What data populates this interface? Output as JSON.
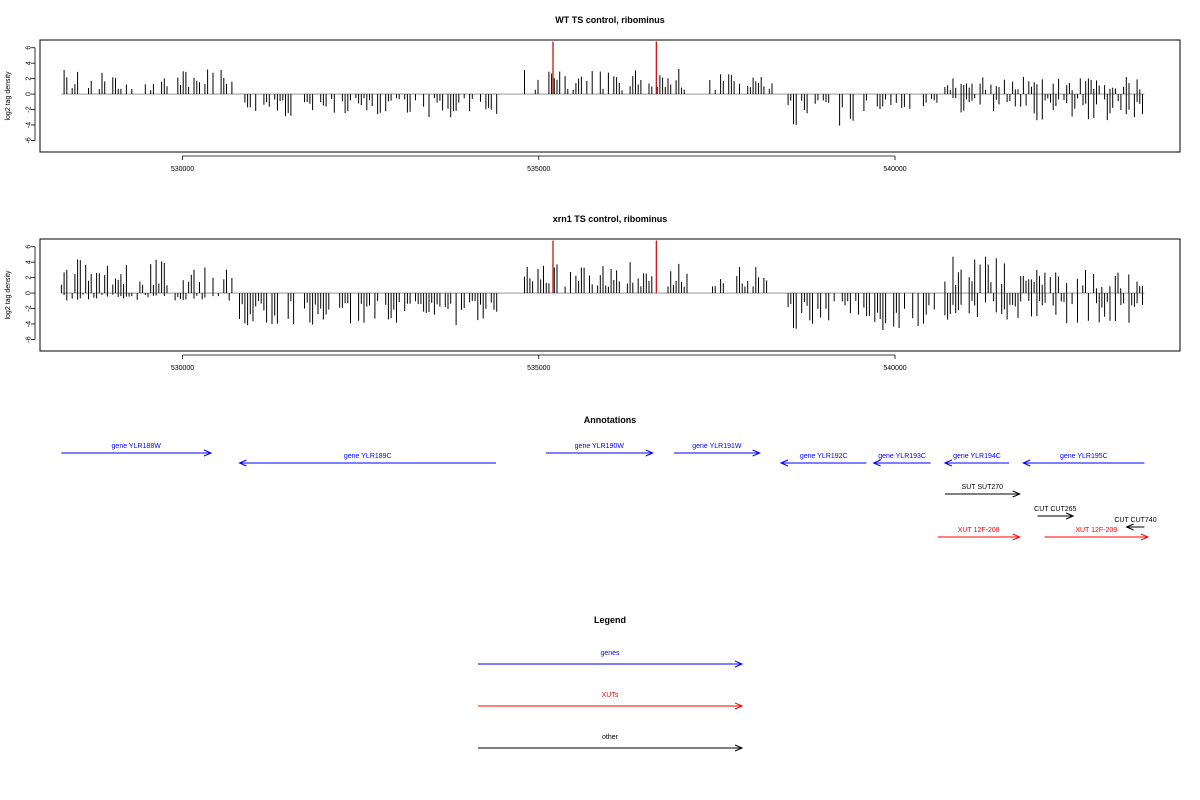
{
  "colors": {
    "gene": "#0000ff",
    "xut": "#ff0000",
    "other": "#000000",
    "bar": "#000000",
    "highlight": "#cc0000",
    "baseline": "#888888",
    "frame": "#000000"
  },
  "chart_data": [
    {
      "type": "bar",
      "title": "WT TS control, ribominus",
      "ylabel": "log2 tag density",
      "xlabel": "",
      "xlim": [
        528000,
        544000
      ],
      "ylim": [
        -7.5,
        7
      ],
      "yticks": [
        -6,
        -4,
        -2,
        0,
        2,
        4,
        6
      ],
      "xticks": [
        530000,
        535000,
        540000
      ],
      "xtick_labels": [
        "530000",
        "535000",
        "540000"
      ],
      "grid": false,
      "regions": [
        {
          "start": 528300,
          "end": 530700,
          "sign": 1,
          "min": 0.5,
          "max": 3.2
        },
        {
          "start": 530800,
          "end": 534500,
          "sign": -1,
          "min": 0.5,
          "max": 3.0
        },
        {
          "start": 534800,
          "end": 537100,
          "sign": 1,
          "min": 0.5,
          "max": 3.4
        },
        {
          "start": 537400,
          "end": 538300,
          "sign": 1,
          "min": 0.5,
          "max": 3.0
        },
        {
          "start": 538500,
          "end": 539600,
          "sign": -1,
          "min": 0.8,
          "max": 4.2
        },
        {
          "start": 539600,
          "end": 540600,
          "sign": -1,
          "min": 0.4,
          "max": 2.0
        },
        {
          "start": 540700,
          "end": 543500,
          "sign": -1,
          "min": 0.5,
          "max": 3.4
        },
        {
          "start": 540700,
          "end": 543500,
          "sign": 1,
          "min": 0.5,
          "max": 2.2
        }
      ],
      "highlights": [
        {
          "x": 535200,
          "y": 6.8
        },
        {
          "x": 536650,
          "y": 6.8
        }
      ]
    },
    {
      "type": "bar",
      "title": "xrn1 TS control, ribominus",
      "ylabel": "log2 tag density",
      "xlabel": "",
      "xlim": [
        528000,
        544000
      ],
      "ylim": [
        -7.5,
        7
      ],
      "yticks": [
        -6,
        -4,
        -2,
        0,
        2,
        4,
        6
      ],
      "xticks": [
        530000,
        535000,
        540000
      ],
      "xtick_labels": [
        "530000",
        "535000",
        "540000"
      ],
      "grid": false,
      "regions": [
        {
          "start": 528300,
          "end": 530700,
          "sign": 1,
          "min": 1.0,
          "max": 4.5
        },
        {
          "start": 528300,
          "end": 530700,
          "sign": -1,
          "min": 0.2,
          "max": 1.0
        },
        {
          "start": 530800,
          "end": 534500,
          "sign": -1,
          "min": 1.0,
          "max": 4.2
        },
        {
          "start": 534800,
          "end": 537100,
          "sign": 1,
          "min": 0.8,
          "max": 4.0
        },
        {
          "start": 537400,
          "end": 538300,
          "sign": 1,
          "min": 0.8,
          "max": 3.5
        },
        {
          "start": 538500,
          "end": 540600,
          "sign": -1,
          "min": 1.0,
          "max": 5.0
        },
        {
          "start": 540700,
          "end": 541800,
          "sign": 1,
          "min": 1.0,
          "max": 4.8
        },
        {
          "start": 540700,
          "end": 543500,
          "sign": -1,
          "min": 1.0,
          "max": 4.0
        },
        {
          "start": 541800,
          "end": 543500,
          "sign": 1,
          "min": 0.6,
          "max": 3.0
        }
      ],
      "highlights": [
        {
          "x": 535200,
          "y": 6.8
        },
        {
          "x": 536650,
          "y": 6.8
        }
      ]
    }
  ],
  "annotations": {
    "title": "Annotations",
    "features": [
      {
        "label": "gene YLR188W",
        "start": 528300,
        "end": 530400,
        "strand": "+",
        "kind": "gene",
        "row": 0
      },
      {
        "label": "gene YLR189C",
        "start": 530800,
        "end": 534400,
        "strand": "-",
        "kind": "gene",
        "row": 1
      },
      {
        "label": "gene YLR190W",
        "start": 535100,
        "end": 536600,
        "strand": "+",
        "kind": "gene",
        "row": 0
      },
      {
        "label": "gene YLR191W",
        "start": 536900,
        "end": 538100,
        "strand": "+",
        "kind": "gene",
        "row": 0
      },
      {
        "label": "gene YLR192C",
        "start": 538400,
        "end": 539600,
        "strand": "-",
        "kind": "gene",
        "row": 1
      },
      {
        "label": "gene YLR193C",
        "start": 539700,
        "end": 540500,
        "strand": "-",
        "kind": "gene",
        "row": 1
      },
      {
        "label": "gene YLR194C",
        "start": 540700,
        "end": 541600,
        "strand": "-",
        "kind": "gene",
        "row": 1
      },
      {
        "label": "gene YLR195C",
        "start": 541800,
        "end": 543500,
        "strand": "-",
        "kind": "gene",
        "row": 1
      },
      {
        "label": "SUT SUT270",
        "start": 540700,
        "end": 541750,
        "strand": "+",
        "kind": "other",
        "row": 2
      },
      {
        "label": "CUT CUT265",
        "start": 542000,
        "end": 542500,
        "strand": "+",
        "kind": "other",
        "row": 3
      },
      {
        "label": "CUT CUT740",
        "start": 543250,
        "end": 543500,
        "strand": "-",
        "kind": "other",
        "row": 4
      },
      {
        "label": "XUT 12F-208",
        "start": 540600,
        "end": 541750,
        "strand": "+",
        "kind": "xut",
        "row": 5
      },
      {
        "label": "XUT 12F-209",
        "start": 542100,
        "end": 543550,
        "strand": "+",
        "kind": "xut",
        "row": 5
      }
    ]
  },
  "legend": {
    "title": "Legend",
    "items": [
      {
        "label": "genes",
        "kind": "gene"
      },
      {
        "label": "XUTs",
        "kind": "xut"
      },
      {
        "label": "other",
        "kind": "other"
      }
    ]
  }
}
